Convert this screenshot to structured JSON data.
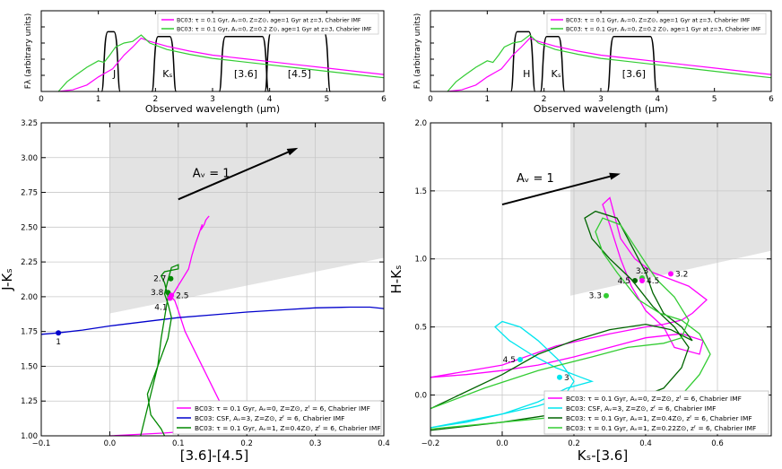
{
  "chart_data": [
    {
      "type": "line",
      "panel": "top-left",
      "xlabel": "Observed wavelength (μm)",
      "ylabel": "Fλ (arbitrary units)",
      "xlim": [
        0,
        6
      ],
      "ylim": [
        0,
        1
      ],
      "xticks": [
        "0",
        "1",
        "2",
        "3",
        "4",
        "5",
        "6"
      ],
      "legend": [
        "BC03: τ = 0.1 Gyr, Aᵥ=0, Z=Z⊙, age=1 Gyr at z=3, Chabrier IMF",
        "BC03: τ = 0.1 Gyr, Aᵥ=0, Z=0.2 Z⊙, age=1 Gyr at z=3, Chabrier IMF"
      ],
      "filter_labels": [
        "J",
        "Kₛ",
        "[3.6]",
        "[4.5]"
      ],
      "series": [
        {
          "name": "BC03 Z=Z⊙",
          "color": "#ff00ff",
          "x": [
            0.3,
            0.55,
            0.8,
            1.0,
            1.15,
            1.25,
            1.45,
            1.6,
            1.75,
            1.9,
            2.2,
            2.6,
            3.0,
            3.5,
            4.0,
            4.5,
            5.0,
            5.5,
            6.0
          ],
          "y": [
            0.0,
            0.02,
            0.08,
            0.18,
            0.24,
            0.28,
            0.45,
            0.55,
            0.66,
            0.62,
            0.56,
            0.5,
            0.45,
            0.41,
            0.37,
            0.33,
            0.29,
            0.25,
            0.21
          ]
        },
        {
          "name": "BC03 Z=0.2Z⊙",
          "color": "#33cc33",
          "x": [
            0.3,
            0.45,
            0.6,
            0.8,
            1.0,
            1.1,
            1.2,
            1.3,
            1.45,
            1.6,
            1.75,
            1.9,
            2.2,
            2.6,
            3.0,
            3.5,
            4.0,
            4.5,
            5.0,
            5.5,
            6.0
          ],
          "y": [
            0.0,
            0.12,
            0.2,
            0.3,
            0.38,
            0.36,
            0.45,
            0.55,
            0.6,
            0.62,
            0.7,
            0.6,
            0.52,
            0.46,
            0.41,
            0.37,
            0.33,
            0.29,
            0.25,
            0.21,
            0.17
          ]
        }
      ],
      "filters": [
        {
          "label": "J",
          "x0": 1.12,
          "x1": 1.32,
          "height": 0.74
        },
        {
          "label": "Kₛ",
          "x0": 2.0,
          "x1": 2.3,
          "height": 0.68
        },
        {
          "label": "[3.6]",
          "x0": 3.18,
          "x1": 3.92,
          "height": 0.68
        },
        {
          "label": "[4.5]",
          "x0": 3.98,
          "x1": 5.0,
          "height": 0.74
        }
      ]
    },
    {
      "type": "line",
      "panel": "top-right",
      "xlabel": "Observed wavelength (μm)",
      "ylabel": "Fλ (arbitrary units)",
      "xlim": [
        0,
        6
      ],
      "ylim": [
        0,
        1
      ],
      "xticks": [
        "0",
        "1",
        "2",
        "3",
        "4",
        "5",
        "6"
      ],
      "legend": [
        "BC03: τ = 0.1 Gyr, Aᵥ=0, Z=Z⊙, age=1 Gyr at z=3, Chabrier IMF",
        "BC03: τ = 0.1 Gyr, Aᵥ=0, Z=0.2 Z⊙, age=1 Gyr at z=3, Chabrier IMF"
      ],
      "filter_labels": [
        "H",
        "Kₛ",
        "[3.6]"
      ],
      "series": [
        {
          "name": "BC03 Z=Z⊙",
          "color": "#ff00ff",
          "x": [
            0.3,
            0.55,
            0.8,
            1.0,
            1.15,
            1.25,
            1.45,
            1.6,
            1.75,
            1.9,
            2.2,
            2.6,
            3.0,
            3.5,
            4.0,
            4.5,
            5.0,
            5.5,
            6.0
          ],
          "y": [
            0.0,
            0.02,
            0.08,
            0.18,
            0.24,
            0.28,
            0.45,
            0.55,
            0.66,
            0.62,
            0.56,
            0.5,
            0.45,
            0.41,
            0.37,
            0.33,
            0.29,
            0.25,
            0.21
          ]
        },
        {
          "name": "BC03 Z=0.2Z⊙",
          "color": "#33cc33",
          "x": [
            0.3,
            0.45,
            0.6,
            0.8,
            1.0,
            1.1,
            1.2,
            1.3,
            1.45,
            1.6,
            1.75,
            1.9,
            2.2,
            2.6,
            3.0,
            3.5,
            4.0,
            4.5,
            5.0,
            5.5,
            6.0
          ],
          "y": [
            0.0,
            0.12,
            0.2,
            0.3,
            0.38,
            0.36,
            0.45,
            0.55,
            0.6,
            0.62,
            0.7,
            0.6,
            0.52,
            0.46,
            0.41,
            0.37,
            0.33,
            0.29,
            0.25,
            0.21,
            0.17
          ]
        }
      ],
      "filters": [
        {
          "label": "H",
          "x0": 1.48,
          "x1": 1.78,
          "height": 0.74
        },
        {
          "label": "Kₛ",
          "x0": 2.0,
          "x1": 2.3,
          "height": 0.68
        },
        {
          "label": "[3.6]",
          "x0": 3.18,
          "x1": 3.92,
          "height": 0.68
        }
      ]
    },
    {
      "type": "line",
      "panel": "bottom-left",
      "xlabel": "[3.6]-[4.5]",
      "ylabel": "J-Kₛ",
      "xlim": [
        -0.1,
        0.4
      ],
      "ylim": [
        1.0,
        3.25
      ],
      "xticks": [
        "−0.1",
        "0.0",
        "0.1",
        "0.2",
        "0.3",
        "0.4"
      ],
      "yticks": [
        "1.00",
        "1.25",
        "1.50",
        "1.75",
        "2.00",
        "2.25",
        "2.50",
        "2.75",
        "3.00",
        "3.25"
      ],
      "grid": true,
      "extinction_label": "Aᵥ = 1",
      "extinction_arrow": {
        "x0": 0.1,
        "y0": 2.7,
        "x1": 0.27,
        "y1": 3.06
      },
      "shaded_region": [
        [
          0.0,
          3.25
        ],
        [
          0.4,
          3.25
        ],
        [
          0.4,
          2.28
        ],
        [
          0.0,
          1.88
        ]
      ],
      "legend": [
        "BC03: τ = 0.1 Gyr, Aᵥ=0, Z=Z⊙, zᶠ = 6, Chabrier IMF",
        "BC03: CSF, Aᵥ=3, Z=Z⊙, zᶠ = 6, Chabrier IMF",
        "BC03: τ = 0.1 Gyr, Aᵥ=1, Z=0.4Z⊙, zᶠ = 6, Chabrier IMF"
      ],
      "series": [
        {
          "name": "magenta",
          "color": "#ff00ff",
          "x": [
            0.0,
            0.08,
            0.16,
            0.17,
            0.15,
            0.13,
            0.11,
            0.1,
            0.095,
            0.09,
            0.1,
            0.115,
            0.12,
            0.125,
            0.13,
            0.135,
            0.133,
            0.138,
            0.14,
            0.143,
            0.145
          ],
          "y": [
            1.0,
            1.02,
            1.05,
            1.15,
            1.35,
            1.55,
            1.75,
            1.9,
            1.97,
            2.0,
            2.08,
            2.2,
            2.3,
            2.38,
            2.45,
            2.52,
            2.48,
            2.52,
            2.55,
            2.57,
            2.58
          ]
        },
        {
          "name": "blue",
          "color": "#0000cc",
          "x": [
            -0.1,
            -0.075,
            -0.04,
            0.0,
            0.05,
            0.1,
            0.15,
            0.2,
            0.25,
            0.3,
            0.35,
            0.38,
            0.4
          ],
          "y": [
            1.73,
            1.74,
            1.76,
            1.79,
            1.82,
            1.85,
            1.87,
            1.89,
            1.905,
            1.92,
            1.925,
            1.925,
            1.915
          ]
        },
        {
          "name": "green",
          "color": "#008800",
          "x": [
            0.045,
            0.05,
            0.06,
            0.07,
            0.075,
            0.08,
            0.085,
            0.08,
            0.075,
            0.08,
            0.1,
            0.1,
            0.09,
            0.085,
            0.08,
            0.085,
            0.09,
            0.085,
            0.07,
            0.055,
            0.06,
            0.075,
            0.08
          ],
          "y": [
            1.0,
            1.1,
            1.3,
            1.5,
            1.7,
            1.85,
            2.0,
            2.1,
            2.15,
            2.18,
            2.2,
            2.23,
            2.21,
            2.12,
            2.02,
            1.95,
            1.85,
            1.7,
            1.5,
            1.3,
            1.15,
            1.05,
            1.0
          ]
        }
      ],
      "points": [
        {
          "label": "1",
          "x": -0.075,
          "y": 1.74,
          "color": "#0000cc",
          "anchor": "below"
        },
        {
          "label": "2.7",
          "x": 0.089,
          "y": 2.13,
          "color": "#008800",
          "anchor": "left"
        },
        {
          "label": "3.8",
          "x": 0.085,
          "y": 2.03,
          "color": "#008800",
          "anchor": "left"
        },
        {
          "label": "2.5",
          "x": 0.09,
          "y": 2.01,
          "color": "#ff00ff",
          "anchor": "right"
        },
        {
          "label": "4.1",
          "x": 0.088,
          "y": 1.99,
          "color": "#ff00ff",
          "anchor": "below-left"
        }
      ]
    },
    {
      "type": "line",
      "panel": "bottom-right",
      "xlabel": "Kₛ-[3.6]",
      "ylabel": "H-Kₛ",
      "xlim": [
        -0.2,
        0.75
      ],
      "ylim": [
        -0.3,
        2.0
      ],
      "xticks": [
        "−0.2",
        "0.0",
        "0.2",
        "0.4",
        "0.6"
      ],
      "yticks": [
        "0.0",
        "0.5",
        "1.0",
        "1.5",
        "2.0"
      ],
      "grid": true,
      "extinction_label": "Aᵥ = 1",
      "extinction_arrow": {
        "x0": 0.0,
        "y0": 1.4,
        "x1": 0.32,
        "y1": 1.62
      },
      "shaded_region": [
        [
          0.19,
          2.0
        ],
        [
          0.75,
          2.0
        ],
        [
          0.75,
          1.06
        ],
        [
          0.19,
          0.73
        ]
      ],
      "legend": [
        "BC03: τ = 0.1 Gyr, Aᵥ=0, Z=Z⊙, zᶠ = 6, Chabrier IMF",
        "BC03: CSF, Aᵥ=3, Z=Z⊙, zᶠ = 6, Chabrier IMF",
        "BC03: τ = 0.1 Gyr, Aᵥ=1, Z=0.4Z⊙, zᶠ = 6, Chabrier IMF",
        "BC03: τ = 0.1 Gyr, Aᵥ=1, Z=0.22Z⊙, zᶠ = 6, Chabrier IMF"
      ],
      "series": [
        {
          "name": "magenta",
          "color": "#ff00ff",
          "x": [
            -0.2,
            -0.1,
            0.0,
            0.1,
            0.2,
            0.3,
            0.4,
            0.5,
            0.56,
            0.55,
            0.48,
            0.45,
            0.4,
            0.36,
            0.33,
            0.3,
            0.28,
            0.3,
            0.31,
            0.33,
            0.37,
            0.42,
            0.47,
            0.52,
            0.57,
            0.53,
            0.5,
            0.45,
            0.4,
            0.3,
            0.15,
            0.0,
            -0.2
          ],
          "y": [
            0.13,
            0.15,
            0.18,
            0.22,
            0.28,
            0.35,
            0.42,
            0.45,
            0.4,
            0.3,
            0.35,
            0.5,
            0.62,
            0.8,
            1.0,
            1.25,
            1.4,
            1.45,
            1.35,
            1.15,
            1.0,
            0.9,
            0.85,
            0.8,
            0.7,
            0.6,
            0.55,
            0.52,
            0.5,
            0.45,
            0.36,
            0.22,
            0.13
          ]
        },
        {
          "name": "cyan",
          "color": "#00e5ee",
          "x": [
            -0.2,
            -0.1,
            0.0,
            0.1,
            0.18,
            0.25,
            0.22,
            0.15,
            0.08,
            0.02,
            -0.02,
            0.0,
            0.05,
            0.1,
            0.16,
            0.2,
            0.17,
            0.1,
            0.0,
            -0.1,
            -0.2
          ],
          "y": [
            -0.24,
            -0.2,
            -0.14,
            -0.05,
            0.05,
            0.1,
            0.13,
            0.2,
            0.3,
            0.4,
            0.5,
            0.54,
            0.5,
            0.4,
            0.25,
            0.1,
            -0.02,
            -0.08,
            -0.14,
            -0.19,
            -0.24
          ]
        },
        {
          "name": "darkgreen",
          "color": "#006400",
          "x": [
            -0.2,
            0.0,
            0.2,
            0.35,
            0.45,
            0.5,
            0.52,
            0.48,
            0.42,
            0.36,
            0.3,
            0.25,
            0.23,
            0.26,
            0.32,
            0.36,
            0.4,
            0.42,
            0.45,
            0.5,
            0.53,
            0.47,
            0.4,
            0.3,
            0.2,
            0.1,
            0.0,
            -0.2
          ],
          "y": [
            -0.26,
            -0.2,
            -0.12,
            -0.05,
            0.05,
            0.2,
            0.35,
            0.5,
            0.65,
            0.85,
            1.0,
            1.15,
            1.3,
            1.35,
            1.3,
            1.1,
            0.9,
            0.75,
            0.6,
            0.5,
            0.4,
            0.48,
            0.52,
            0.48,
            0.4,
            0.3,
            0.15,
            -0.1
          ]
        },
        {
          "name": "green",
          "color": "#33cc33",
          "x": [
            -0.2,
            0.0,
            0.2,
            0.4,
            0.5,
            0.55,
            0.58,
            0.55,
            0.5,
            0.44,
            0.38,
            0.32,
            0.28,
            0.26,
            0.28,
            0.33,
            0.38,
            0.43,
            0.48,
            0.52,
            0.5,
            0.45,
            0.35,
            0.25,
            0.1,
            -0.05,
            -0.2
          ],
          "y": [
            -0.25,
            -0.2,
            -0.15,
            -0.1,
            0.0,
            0.15,
            0.3,
            0.45,
            0.55,
            0.6,
            0.7,
            0.9,
            1.05,
            1.2,
            1.3,
            1.25,
            1.05,
            0.85,
            0.72,
            0.55,
            0.42,
            0.38,
            0.35,
            0.28,
            0.18,
            0.05,
            -0.1
          ]
        }
      ],
      "points": [
        {
          "label": "3.2",
          "x": 0.47,
          "y": 0.89,
          "color": "#ff00ff",
          "anchor": "right"
        },
        {
          "label": "3.3",
          "x": 0.39,
          "y": 0.86,
          "color": "#33cc33",
          "anchor": "above"
        },
        {
          "label": "4.5",
          "x": 0.37,
          "y": 0.84,
          "color": "#006400",
          "anchor": "left"
        },
        {
          "label": "4.5",
          "x": 0.39,
          "y": 0.84,
          "color": "#ff00ff",
          "anchor": "right"
        },
        {
          "label": "3.3",
          "x": 0.29,
          "y": 0.73,
          "color": "#33cc33",
          "anchor": "left"
        },
        {
          "label": "4.5",
          "x": 0.05,
          "y": 0.26,
          "color": "#00e5ee",
          "anchor": "left"
        },
        {
          "label": "3",
          "x": 0.16,
          "y": 0.13,
          "color": "#00e5ee",
          "anchor": "right"
        }
      ]
    }
  ]
}
